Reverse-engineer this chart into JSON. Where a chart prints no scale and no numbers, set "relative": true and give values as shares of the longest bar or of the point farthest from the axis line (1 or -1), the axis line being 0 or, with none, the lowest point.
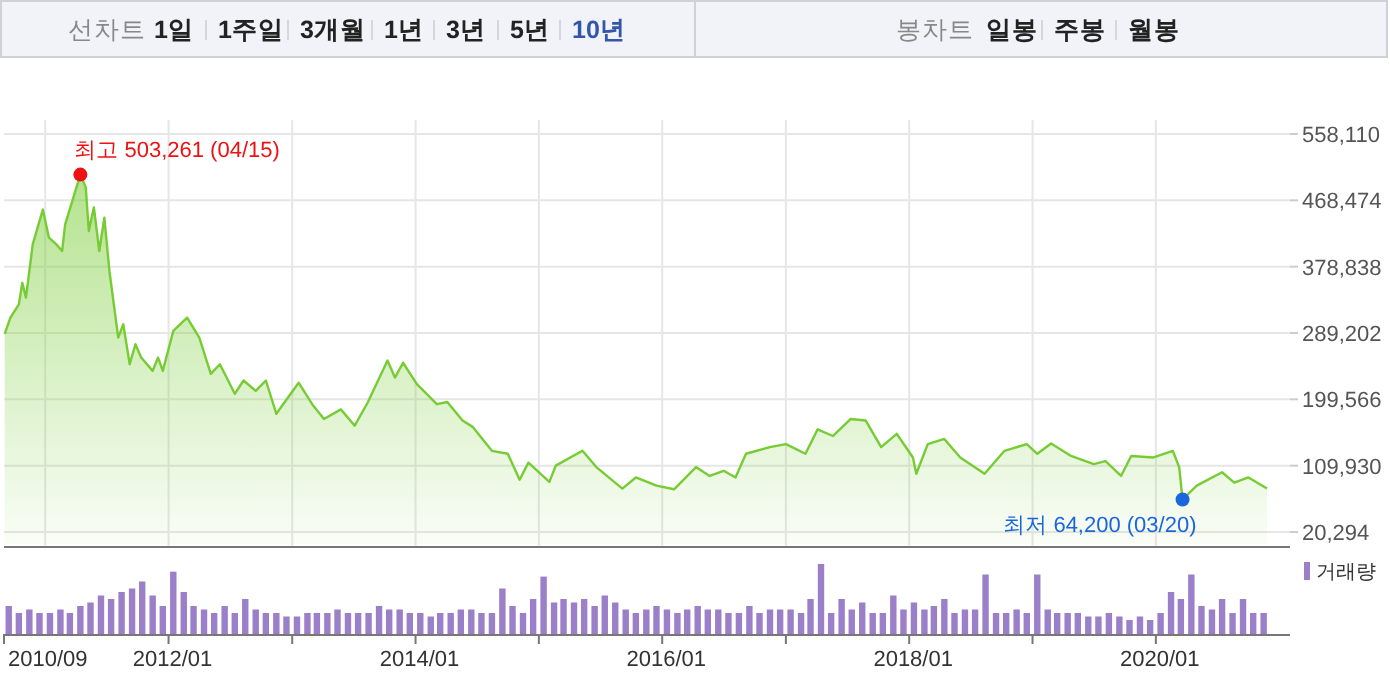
{
  "chart_data": [
    {
      "type": "other",
      "annotations": [
        "선차트",
        "1일",
        "1주일",
        "3개월",
        "1년",
        "3년",
        "5년",
        "10년",
        "봉차트",
        "일봉",
        "주봉",
        "월봉"
      ]
    },
    {
      "type": "area",
      "tick_labels": "y",
      "grid": true,
      "xlim": [
        "2010-09-01",
        "2021-02-01"
      ],
      "ylim": [
        20294,
        558110
      ],
      "yticks": [
        {
          "value": 20294,
          "label": "20,294"
        },
        {
          "value": 109930,
          "label": "109,930"
        },
        {
          "value": 199566,
          "label": "199,566"
        },
        {
          "value": 289202,
          "label": "289,202"
        },
        {
          "value": 378838,
          "label": "378,838"
        },
        {
          "value": 468474,
          "label": "468,474"
        },
        {
          "value": 558110,
          "label": "558,110"
        }
      ],
      "xticks": [
        {
          "value": "2011-01",
          "label": null
        },
        {
          "value": "2012-01",
          "label": null
        },
        {
          "value": "2013-01",
          "label": null
        },
        {
          "value": "2014-01",
          "label": null
        },
        {
          "value": "2015-01",
          "label": null
        },
        {
          "value": "2016-01",
          "label": null
        },
        {
          "value": "2017-01",
          "label": null
        },
        {
          "value": "2018-01",
          "label": null
        },
        {
          "value": "2019-01",
          "label": null
        },
        {
          "value": "2020-01",
          "label": null
        }
      ],
      "annotations": [
        {
          "text": "최고 503,261 (04/15)",
          "x": "2011-04-15",
          "y": 503261
        },
        {
          "text": "최저 64,200 (03/20)",
          "x": "2020-03-20",
          "y": 64200
        }
      ],
      "series": [
        {
          "color": "#77cc33",
          "x": [
            "2010-09-03",
            "2010-09-20",
            "2010-10-15",
            "2010-10-25",
            "2010-11-05",
            "2010-11-25",
            "2010-12-25",
            "2011-01-12",
            "2011-02-03",
            "2011-02-20",
            "2011-03-01",
            "2011-04-15",
            "2011-05-01",
            "2011-05-10",
            "2011-05-25",
            "2011-06-10",
            "2011-06-25",
            "2011-07-10",
            "2011-08-05",
            "2011-08-20",
            "2011-09-08",
            "2011-09-25",
            "2011-10-12",
            "2011-11-15",
            "2011-12-01",
            "2011-12-15",
            "2012-01-15",
            "2012-02-25",
            "2012-04-01",
            "2012-05-05",
            "2012-06-01",
            "2012-07-15",
            "2012-08-10",
            "2012-09-15",
            "2012-10-15",
            "2012-11-15",
            "2013-01-20",
            "2013-03-01",
            "2013-04-05",
            "2013-05-25",
            "2013-07-05",
            "2013-08-12",
            "2013-10-10",
            "2013-11-01",
            "2013-11-25",
            "2014-01-05",
            "2014-03-05",
            "2014-04-05",
            "2014-05-20",
            "2014-06-20",
            "2014-08-15",
            "2014-10-01",
            "2014-11-05",
            "2014-12-01",
            "2015-02-01",
            "2015-02-20",
            "2015-05-10",
            "2015-06-20",
            "2015-09-05",
            "2015-10-15",
            "2015-12-15",
            "2016-02-05",
            "2016-04-10",
            "2016-05-20",
            "2016-07-01",
            "2016-08-05",
            "2016-09-05",
            "2016-11-15",
            "2017-01-01",
            "2017-02-28",
            "2017-04-05",
            "2017-05-20",
            "2017-07-12",
            "2017-08-25",
            "2017-10-10",
            "2017-11-25",
            "2018-01-12",
            "2018-01-22",
            "2018-02-25",
            "2018-04-15",
            "2018-06-01",
            "2018-08-12",
            "2018-10-10",
            "2018-12-15",
            "2019-01-15",
            "2019-02-25",
            "2019-04-25",
            "2019-07-01",
            "2019-08-05",
            "2019-09-20",
            "2019-10-20",
            "2019-12-25",
            "2020-02-20",
            "2020-03-10",
            "2020-03-20",
            "2020-05-01",
            "2020-07-15",
            "2020-08-20",
            "2020-10-01",
            "2020-11-25"
          ],
          "values": [
            288000,
            310000,
            328000,
            357000,
            337000,
            409000,
            456000,
            418000,
            409000,
            400000,
            436000,
            503261,
            486000,
            427000,
            459000,
            400000,
            445000,
            373000,
            283000,
            301000,
            247000,
            274000,
            256000,
            238000,
            256000,
            238000,
            292000,
            310000,
            283000,
            234000,
            247000,
            207000,
            225000,
            211000,
            225000,
            180000,
            222000,
            193000,
            173000,
            186000,
            164000,
            195000,
            252000,
            229000,
            249000,
            220000,
            193000,
            196000,
            171000,
            162000,
            130000,
            126000,
            91000,
            114000,
            88000,
            110000,
            130000,
            108000,
            79000,
            94000,
            83000,
            78000,
            108000,
            96000,
            103000,
            94000,
            126000,
            135000,
            139000,
            126000,
            159000,
            150000,
            173000,
            171000,
            135000,
            153000,
            121000,
            99000,
            139000,
            146000,
            121000,
            99000,
            130000,
            139000,
            126000,
            140000,
            123000,
            112000,
            116000,
            96000,
            123000,
            121000,
            130000,
            108000,
            64200,
            83000,
            101000,
            87000,
            94000,
            79000
          ]
        }
      ]
    },
    {
      "type": "bar",
      "relative": true,
      "tick_labels": "x",
      "legend": "top right",
      "xlim": [
        "2010-09-01",
        "2021-02-01"
      ],
      "xticks": [
        {
          "value": "2010-09",
          "label": "2010/09"
        },
        {
          "value": "2012-01",
          "label": "2012/01"
        },
        {
          "value": "2013-01",
          "label": null
        },
        {
          "value": "2014-01",
          "label": "2014/01"
        },
        {
          "value": "2015-01",
          "label": null
        },
        {
          "value": "2016-01",
          "label": "2016/01"
        },
        {
          "value": "2017-01",
          "label": null
        },
        {
          "value": "2018-01",
          "label": "2018/01"
        },
        {
          "value": "2019-01",
          "label": null
        },
        {
          "value": "2020-01",
          "label": "2020/01"
        }
      ],
      "series": [
        {
          "name": "거래량",
          "color": "#9b7fc9",
          "x": [
            "2010-09-15",
            "2010-10-15",
            "2010-11-15",
            "2010-12-15",
            "2011-01-15",
            "2011-02-15",
            "2011-03-15",
            "2011-04-15",
            "2011-05-15",
            "2011-06-15",
            "2011-07-15",
            "2011-08-15",
            "2011-09-15",
            "2011-10-15",
            "2011-11-15",
            "2011-12-15",
            "2012-01-15",
            "2012-02-15",
            "2012-03-15",
            "2012-04-15",
            "2012-05-15",
            "2012-06-15",
            "2012-07-15",
            "2012-08-15",
            "2012-09-15",
            "2012-10-15",
            "2012-11-15",
            "2012-12-15",
            "2013-01-15",
            "2013-02-15",
            "2013-03-15",
            "2013-04-15",
            "2013-05-15",
            "2013-06-15",
            "2013-07-15",
            "2013-08-15",
            "2013-09-15",
            "2013-10-15",
            "2013-11-15",
            "2013-12-15",
            "2014-01-15",
            "2014-02-15",
            "2014-03-15",
            "2014-04-15",
            "2014-05-15",
            "2014-06-15",
            "2014-07-15",
            "2014-08-15",
            "2014-09-15",
            "2014-10-15",
            "2014-11-15",
            "2014-12-15",
            "2015-01-15",
            "2015-02-15",
            "2015-03-15",
            "2015-04-15",
            "2015-05-15",
            "2015-06-15",
            "2015-07-15",
            "2015-08-15",
            "2015-09-15",
            "2015-10-15",
            "2015-11-15",
            "2015-12-15",
            "2016-01-15",
            "2016-02-15",
            "2016-03-15",
            "2016-04-15",
            "2016-05-15",
            "2016-06-15",
            "2016-07-15",
            "2016-08-15",
            "2016-09-15",
            "2016-10-15",
            "2016-11-15",
            "2016-12-15",
            "2017-01-15",
            "2017-02-15",
            "2017-03-15",
            "2017-04-15",
            "2017-05-15",
            "2017-06-15",
            "2017-07-15",
            "2017-08-15",
            "2017-09-15",
            "2017-10-15",
            "2017-11-15",
            "2017-12-15",
            "2018-01-15",
            "2018-02-15",
            "2018-03-15",
            "2018-04-15",
            "2018-05-15",
            "2018-06-15",
            "2018-07-15",
            "2018-08-15",
            "2018-09-15",
            "2018-10-15",
            "2018-11-15",
            "2018-12-15",
            "2019-01-15",
            "2019-02-15",
            "2019-03-15",
            "2019-04-15",
            "2019-05-15",
            "2019-06-15",
            "2019-07-15",
            "2019-08-15",
            "2019-09-15",
            "2019-10-15",
            "2019-11-15",
            "2019-12-15",
            "2020-01-15",
            "2020-02-15",
            "2020-03-15",
            "2020-04-15",
            "2020-05-15",
            "2020-06-15",
            "2020-07-15",
            "2020-08-15",
            "2020-09-15",
            "2020-10-15",
            "2020-11-15"
          ],
          "values": [
            0.4,
            0.3,
            0.35,
            0.3,
            0.3,
            0.35,
            0.3,
            0.4,
            0.45,
            0.55,
            0.5,
            0.6,
            0.65,
            0.75,
            0.55,
            0.4,
            0.89,
            0.6,
            0.4,
            0.35,
            0.3,
            0.4,
            0.3,
            0.5,
            0.35,
            0.3,
            0.3,
            0.25,
            0.25,
            0.3,
            0.3,
            0.3,
            0.35,
            0.3,
            0.3,
            0.3,
            0.4,
            0.35,
            0.35,
            0.3,
            0.3,
            0.25,
            0.3,
            0.3,
            0.35,
            0.35,
            0.3,
            0.3,
            0.65,
            0.4,
            0.3,
            0.5,
            0.82,
            0.45,
            0.5,
            0.45,
            0.5,
            0.4,
            0.55,
            0.45,
            0.35,
            0.3,
            0.35,
            0.4,
            0.35,
            0.3,
            0.35,
            0.4,
            0.35,
            0.35,
            0.3,
            0.3,
            0.4,
            0.3,
            0.35,
            0.35,
            0.35,
            0.3,
            0.5,
            1,
            0.3,
            0.5,
            0.35,
            0.45,
            0.3,
            0.3,
            0.55,
            0.35,
            0.45,
            0.35,
            0.4,
            0.5,
            0.3,
            0.35,
            0.35,
            0.85,
            0.3,
            0.3,
            0.35,
            0.3,
            0.85,
            0.35,
            0.3,
            0.3,
            0.3,
            0.25,
            0.25,
            0.3,
            0.25,
            0.2,
            0.25,
            0.2,
            0.3,
            0.6,
            0.5,
            0.85,
            0.4,
            0.35,
            0.5,
            0.3,
            0.5,
            0.3,
            0.3
          ]
        }
      ]
    }
  ]
}
